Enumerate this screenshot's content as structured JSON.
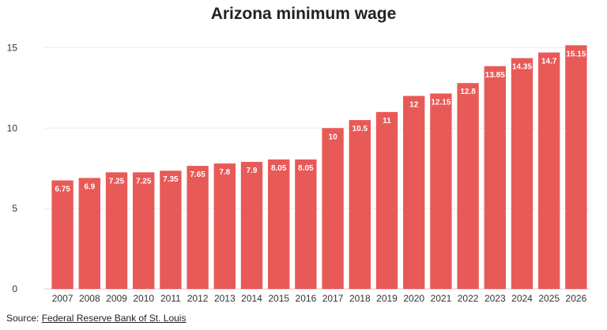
{
  "chart_data": {
    "type": "bar",
    "title": "Arizona minimum wage",
    "categories": [
      "2007",
      "2008",
      "2009",
      "2010",
      "2011",
      "2012",
      "2013",
      "2014",
      "2015",
      "2016",
      "2017",
      "2018",
      "2019",
      "2020",
      "2021",
      "2022",
      "2023",
      "2024",
      "2025",
      "2026"
    ],
    "values": [
      6.75,
      6.9,
      7.25,
      7.25,
      7.35,
      7.65,
      7.8,
      7.9,
      8.05,
      8.05,
      10,
      10.5,
      11,
      12,
      12.15,
      12.8,
      13.85,
      14.35,
      14.7,
      15.15
    ],
    "data_labels": [
      "6.75",
      "6.9",
      "7.25",
      "7.25",
      "7.35",
      "7.65",
      "7.8",
      "7.9",
      "8.05",
      "8.05",
      "10",
      "10.5",
      "11",
      "12",
      "12.15",
      "12.8",
      "13.85",
      "14.35",
      "14.7",
      "15.15"
    ],
    "xlabel": "",
    "ylabel": "",
    "ylim": [
      0,
      16
    ],
    "yticks": [
      0,
      5,
      10,
      15
    ],
    "ytick_labels": [
      "0",
      "5",
      "10",
      "15"
    ],
    "grid": true,
    "bar_color": "#e85a57",
    "label_color": "#ffffff"
  },
  "source": {
    "prefix": "Source: ",
    "link_text": "Federal Reserve Bank of St. Louis"
  }
}
